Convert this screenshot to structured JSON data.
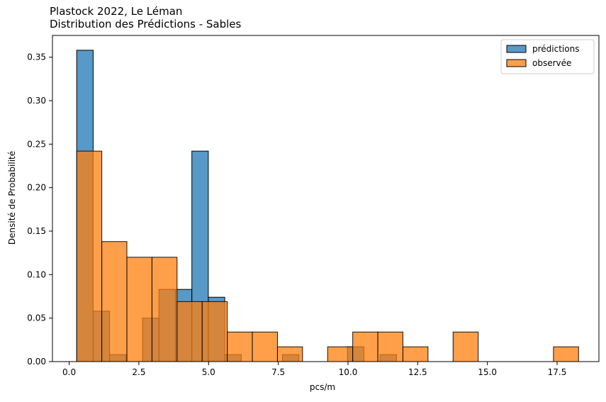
{
  "chart_data": {
    "type": "bar",
    "title": "Plastock 2022, Le Léman",
    "subtitle": "Distribution des Prédictions - Sables",
    "xlabel": "pcs/m",
    "ylabel": "Densité de Probabilité",
    "xlim": [
      -0.6,
      19.0
    ],
    "ylim": [
      0,
      0.375
    ],
    "xticks": [
      0.0,
      2.5,
      5.0,
      7.5,
      10.0,
      12.5,
      15.0,
      17.5
    ],
    "xtick_labels": [
      "0.0",
      "2.5",
      "5.0",
      "7.5",
      "10.0",
      "12.5",
      "15.0",
      "17.5"
    ],
    "yticks": [
      0.0,
      0.05,
      0.1,
      0.15,
      0.2,
      0.25,
      0.3,
      0.35
    ],
    "ytick_labels": [
      "0.00",
      "0.05",
      "0.10",
      "0.15",
      "0.20",
      "0.25",
      "0.30",
      "0.35"
    ],
    "grid": false,
    "legend_position": "top-right",
    "series": [
      {
        "name": "prédictions",
        "color": "#1f77b4",
        "bins": [
          {
            "x0": 0.27,
            "x1": 0.86,
            "density": 0.358
          },
          {
            "x0": 0.86,
            "x1": 1.45,
            "density": 0.058
          },
          {
            "x0": 1.45,
            "x1": 2.04,
            "density": 0.008
          },
          {
            "x0": 2.04,
            "x1": 2.63,
            "density": 0.0
          },
          {
            "x0": 2.63,
            "x1": 3.22,
            "density": 0.05
          },
          {
            "x0": 3.22,
            "x1": 3.81,
            "density": 0.083
          },
          {
            "x0": 3.81,
            "x1": 4.4,
            "density": 0.083
          },
          {
            "x0": 4.4,
            "x1": 4.99,
            "density": 0.242
          },
          {
            "x0": 4.99,
            "x1": 5.58,
            "density": 0.074
          },
          {
            "x0": 5.58,
            "x1": 6.17,
            "density": 0.008
          },
          {
            "x0": 7.65,
            "x1": 8.24,
            "density": 0.008
          },
          {
            "x0": 9.98,
            "x1": 10.57,
            "density": 0.017
          },
          {
            "x0": 11.15,
            "x1": 11.74,
            "density": 0.008
          }
        ]
      },
      {
        "name": "observée",
        "color": "#ff7f0e",
        "bins": [
          {
            "x0": 0.27,
            "x1": 1.17,
            "density": 0.242
          },
          {
            "x0": 1.17,
            "x1": 2.07,
            "density": 0.138
          },
          {
            "x0": 2.07,
            "x1": 2.97,
            "density": 0.12
          },
          {
            "x0": 2.97,
            "x1": 3.87,
            "density": 0.12
          },
          {
            "x0": 3.87,
            "x1": 4.77,
            "density": 0.069
          },
          {
            "x0": 4.77,
            "x1": 5.67,
            "density": 0.069
          },
          {
            "x0": 5.67,
            "x1": 6.57,
            "density": 0.034
          },
          {
            "x0": 6.57,
            "x1": 7.47,
            "density": 0.034
          },
          {
            "x0": 7.47,
            "x1": 8.37,
            "density": 0.017
          },
          {
            "x0": 9.27,
            "x1": 10.17,
            "density": 0.017
          },
          {
            "x0": 10.17,
            "x1": 11.07,
            "density": 0.034
          },
          {
            "x0": 11.07,
            "x1": 11.97,
            "density": 0.034
          },
          {
            "x0": 11.97,
            "x1": 12.87,
            "density": 0.017
          },
          {
            "x0": 13.77,
            "x1": 14.67,
            "density": 0.034
          },
          {
            "x0": 17.37,
            "x1": 18.27,
            "density": 0.017
          }
        ]
      }
    ]
  }
}
